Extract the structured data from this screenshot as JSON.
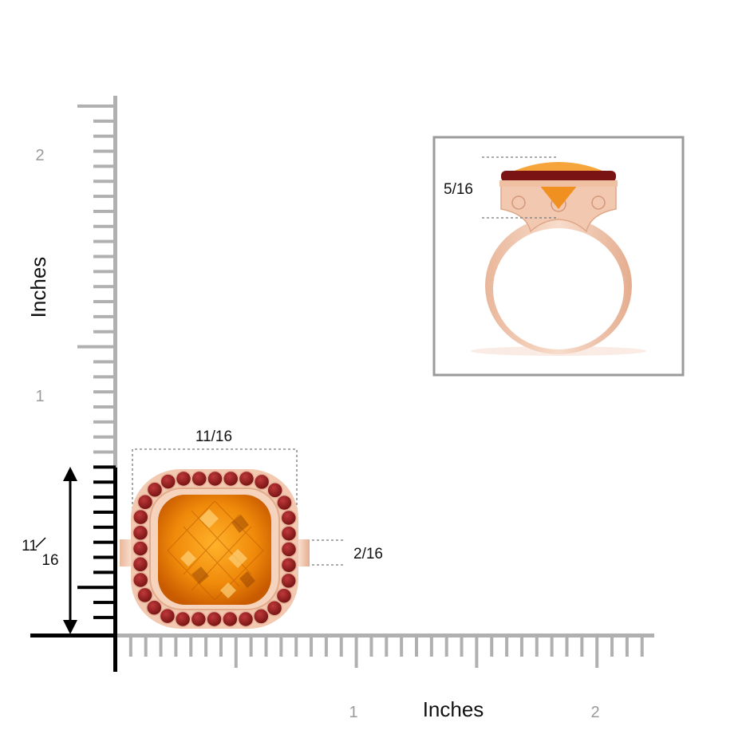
{
  "axes": {
    "y_title": "Inches",
    "x_title": "Inches",
    "y_tick_labels": [
      "2",
      "1"
    ],
    "x_tick_labels": [
      "1",
      "2"
    ]
  },
  "dimensions": {
    "width": "11/16",
    "height_numerator": "11",
    "height_denominator": "16",
    "band_width": "2/16",
    "side_height": "5/16"
  },
  "colors": {
    "ruler": "#b0b0b0",
    "gemstone": "#f08a0a",
    "halo_stones": "#8b1a1a",
    "metal": "#f2c9b0",
    "inset_border": "#9a9a9a",
    "dim_arrow": "#000000"
  },
  "images": {
    "top_view": "citrine-ruby-halo-ring-top-view",
    "side_view": "citrine-ruby-halo-ring-side-view"
  }
}
